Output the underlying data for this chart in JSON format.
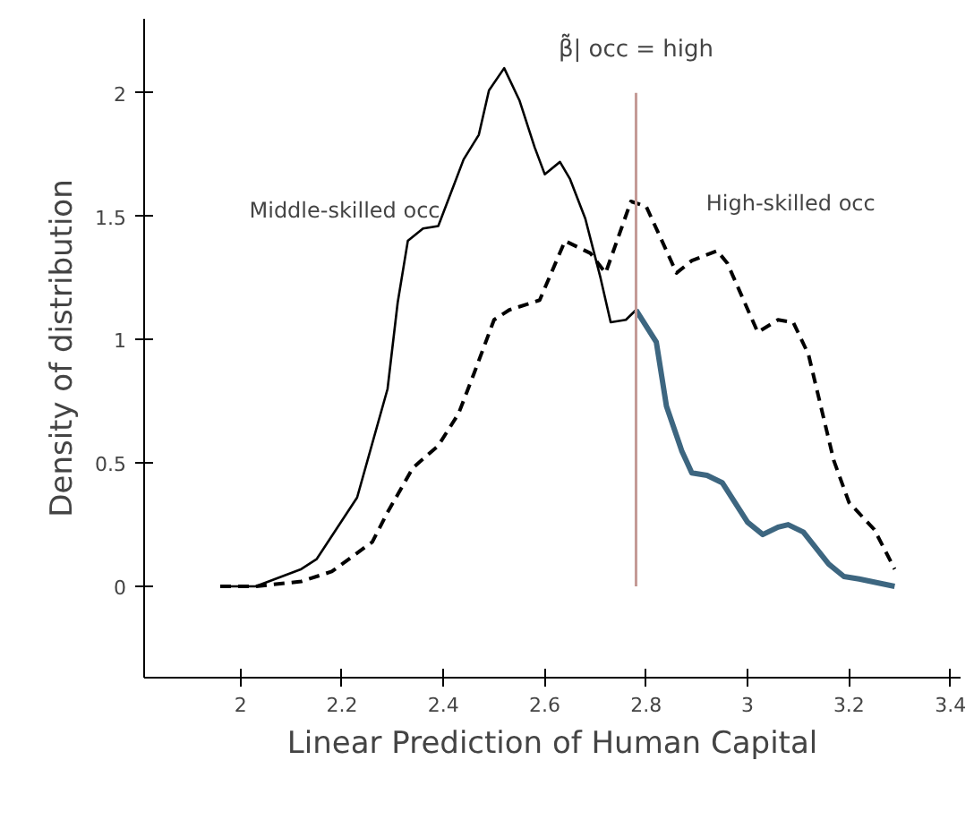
{
  "chart_data": {
    "type": "line",
    "xlabel": "Linear Prediction of Human Capital",
    "ylabel": "Density of distribution",
    "xlim": [
      1.81,
      3.42
    ],
    "ylim": [
      -0.37,
      2.3
    ],
    "xticks": [
      2,
      2.2,
      2.4,
      2.6,
      2.8,
      3,
      3.2,
      3.4
    ],
    "yticks": [
      0,
      0.5,
      1,
      1.5,
      2
    ],
    "grid": false,
    "series": [
      {
        "name": "Middle-skilled occ",
        "color": "#000000",
        "line_style": "solid",
        "x": [
          1.96,
          2.03,
          2.12,
          2.15,
          2.23,
          2.29,
          2.31,
          2.33,
          2.36,
          2.39,
          2.44,
          2.47,
          2.49,
          2.52,
          2.55,
          2.58,
          2.6,
          2.63,
          2.65,
          2.68,
          2.71,
          2.73,
          2.76,
          2.78
        ],
        "values": [
          0,
          0,
          0.07,
          0.11,
          0.36,
          0.8,
          1.15,
          1.4,
          1.45,
          1.46,
          1.73,
          1.83,
          2.01,
          2.1,
          1.97,
          1.78,
          1.67,
          1.72,
          1.65,
          1.49,
          1.25,
          1.07,
          1.08,
          1.12
        ]
      },
      {
        "color": "#3d6680",
        "line_style": "solid",
        "x": [
          2.78,
          2.82,
          2.84,
          2.87,
          2.89,
          2.92,
          2.95,
          3,
          3.03,
          3.06,
          3.08,
          3.11,
          3.16,
          3.19,
          3.22,
          3.29
        ],
        "values": [
          1.12,
          0.99,
          0.73,
          0.55,
          0.46,
          0.45,
          0.42,
          0.26,
          0.21,
          0.24,
          0.25,
          0.22,
          0.09,
          0.04,
          0.03,
          0
        ]
      },
      {
        "name": "High-skilled occ",
        "color": "#000000",
        "line_style": "dashed",
        "x": [
          1.96,
          2.03,
          2.12,
          2.18,
          2.26,
          2.29,
          2.34,
          2.39,
          2.43,
          2.46,
          2.5,
          2.53,
          2.59,
          2.64,
          2.69,
          2.72,
          2.77,
          2.8,
          2.86,
          2.89,
          2.94,
          2.96,
          3.02,
          3.06,
          3.09,
          3.12,
          3.17,
          3.2,
          3.25,
          3.29
        ],
        "values": [
          0,
          0,
          0.02,
          0.06,
          0.18,
          0.3,
          0.48,
          0.57,
          0.7,
          0.86,
          1.08,
          1.12,
          1.16,
          1.4,
          1.35,
          1.27,
          1.56,
          1.54,
          1.27,
          1.32,
          1.36,
          1.31,
          1.03,
          1.08,
          1.07,
          0.94,
          0.51,
          0.34,
          0.23,
          0.07
        ]
      }
    ],
    "ref_lines": [
      {
        "axis": "x",
        "value": 2.78,
        "label": "β̃̃| occ = high",
        "color": "#c49a96"
      }
    ]
  }
}
